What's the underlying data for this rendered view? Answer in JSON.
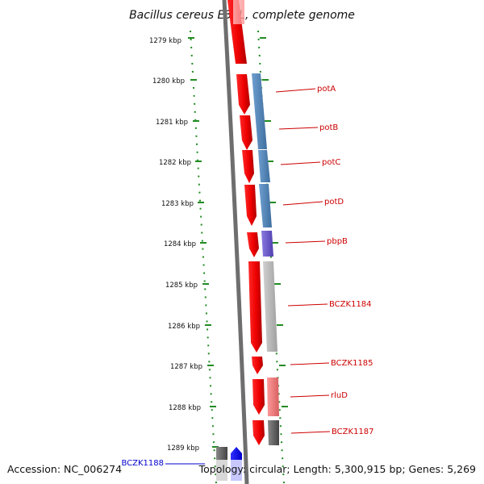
{
  "title": "Bacillus cereus E33L, complete genome",
  "ticks": [
    "1279 kbp",
    "1280 kbp",
    "1281 kbp",
    "1282 kbp",
    "1283 kbp",
    "1284 kbp",
    "1285 kbp",
    "1286 kbp",
    "1287 kbp",
    "1288 kbp",
    "1289 kbp"
  ],
  "genes": [
    {
      "name": "potA",
      "color": "#4f81bd"
    },
    {
      "name": "potB",
      "color": "#4f81bd"
    },
    {
      "name": "potC",
      "color": "#4f81bd"
    },
    {
      "name": "potD",
      "color": "#4f81bd"
    },
    {
      "name": "pbpB",
      "color": "#6a5acd"
    },
    {
      "name": "BCZK1184",
      "color": "#b0b0b0"
    },
    {
      "name": "BCZK1185",
      "color": "#ffffff"
    },
    {
      "name": "rluD",
      "color": "#f08080"
    },
    {
      "name": "BCZK1187",
      "color": "#666666"
    },
    {
      "name": "BCZK1188",
      "color": "#555555"
    }
  ],
  "footer": {
    "accession": "Accession: NC_006274",
    "stats": "Topology: circular; Length: 5,300,915 bp; Genes: 5,269"
  },
  "colors": {
    "strand_arrow": "#ee0000",
    "tick_marks": "#228b22",
    "backbone": "#777777",
    "label_red": "#cc0000",
    "label_blue": "#0000cc"
  }
}
